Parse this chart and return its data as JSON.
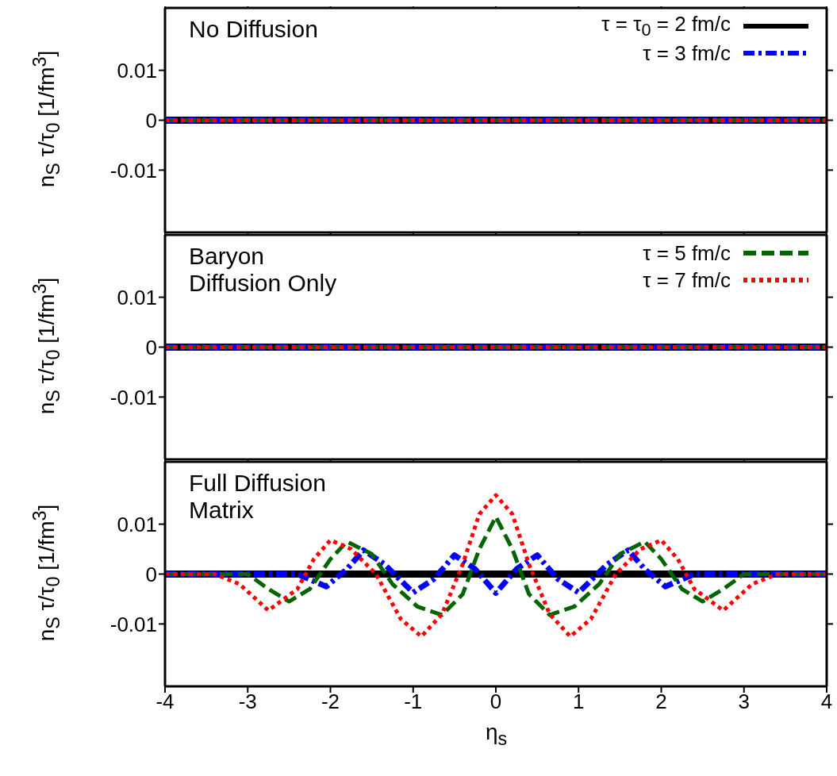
{
  "chart_data": [
    {
      "type": "line",
      "ylabel": "n$_{S}$ τ/τ$_{0}$ [1/fm$^{3}$]",
      "annotations": [
        "No Diffusion"
      ],
      "xlim": [
        -4,
        4
      ],
      "xticks": [
        -4,
        -3,
        -2,
        -1,
        0,
        1,
        2,
        3,
        4
      ],
      "ylim": [
        -0.0225,
        0.0225
      ],
      "yticks": [
        -0.01,
        0,
        0.01
      ],
      "tick_labels": "y",
      "legend": "top right",
      "series": [
        {
          "name": "τ = τ$_{0}$ = 2 fm/c",
          "color": "#000000",
          "line_style": "solid",
          "x": [
            -4,
            4
          ],
          "values": [
            0,
            0
          ]
        },
        {
          "name": "τ = 3 fm/c",
          "color": "#0000ff",
          "line_style": "dashdot",
          "x": [
            -4,
            4
          ],
          "values": [
            0,
            0
          ]
        },
        {
          "color": "#006400",
          "line_style": "dashed",
          "x": [
            -4,
            4
          ],
          "values": [
            0,
            0
          ]
        },
        {
          "color": "#ff0000",
          "line_style": "dotted",
          "x": [
            -4,
            4
          ],
          "values": [
            0,
            0
          ]
        }
      ]
    },
    {
      "type": "line",
      "ylabel": "n$_{S}$ τ/τ$_{0}$ [1/fm$^{3}$]",
      "annotations": [
        "Baryon\nDiffusion Only"
      ],
      "xlim": [
        -4,
        4
      ],
      "xticks": [
        -4,
        -3,
        -2,
        -1,
        0,
        1,
        2,
        3,
        4
      ],
      "ylim": [
        -0.0225,
        0.0225
      ],
      "yticks": [
        -0.01,
        0,
        0.01
      ],
      "tick_labels": "y",
      "legend": "top right",
      "series": [
        {
          "color": "#000000",
          "line_style": "solid",
          "x": [
            -4,
            4
          ],
          "values": [
            0,
            0
          ]
        },
        {
          "color": "#0000ff",
          "line_style": "dashdot",
          "x": [
            -4,
            4
          ],
          "values": [
            0,
            0
          ]
        },
        {
          "name": "τ = 5 fm/c",
          "color": "#006400",
          "line_style": "dashed",
          "x": [
            -4,
            4
          ],
          "values": [
            0,
            0
          ]
        },
        {
          "name": "τ = 7 fm/c",
          "color": "#ff0000",
          "line_style": "dotted",
          "x": [
            -4,
            4
          ],
          "values": [
            0,
            0
          ]
        }
      ]
    },
    {
      "type": "line",
      "xlabel": "η$_{s}$",
      "ylabel": "n$_{S}$ τ/τ$_{0}$ [1/fm$^{3}$]",
      "annotations": [
        "Full Diffusion\nMatrix"
      ],
      "xlim": [
        -4,
        4
      ],
      "xticks": [
        -4,
        -3,
        -2,
        -1,
        0,
        1,
        2,
        3,
        4
      ],
      "ylim": [
        -0.0225,
        0.0225
      ],
      "yticks": [
        -0.01,
        0,
        0.01
      ],
      "legend": false,
      "series": [
        {
          "color": "#000000",
          "line_style": "solid",
          "x": [
            -4,
            4
          ],
          "values": [
            0,
            0
          ]
        },
        {
          "color": "#0000ff",
          "line_style": "dashdot",
          "x": [
            -4,
            -2.4,
            -2.05,
            -1.8,
            -1.6,
            -1.35,
            -1.0,
            -0.75,
            -0.5,
            -0.25,
            0,
            0.25,
            0.5,
            0.75,
            1.0,
            1.35,
            1.6,
            1.8,
            2.05,
            2.4,
            4
          ],
          "values": [
            0,
            0,
            -0.0025,
            0.001,
            0.0048,
            0.002,
            -0.0037,
            -0.001,
            0.0038,
            0.001,
            -0.0038,
            0.001,
            0.0038,
            -0.001,
            -0.0037,
            0.002,
            0.0048,
            0.001,
            -0.0025,
            0,
            0
          ]
        },
        {
          "color": "#006400",
          "line_style": "dashed",
          "x": [
            -4,
            -3.0,
            -2.75,
            -2.5,
            -2.25,
            -2.0,
            -1.8,
            -1.5,
            -1.25,
            -0.95,
            -0.65,
            -0.4,
            -0.2,
            0,
            0.2,
            0.4,
            0.65,
            0.95,
            1.25,
            1.5,
            1.8,
            2.0,
            2.25,
            2.5,
            2.75,
            3.0,
            4
          ],
          "values": [
            0,
            0,
            -0.003,
            -0.0055,
            -0.003,
            0.003,
            0.0065,
            0.004,
            -0.002,
            -0.0065,
            -0.0082,
            -0.004,
            0.005,
            0.0115,
            0.005,
            -0.004,
            -0.0082,
            -0.0065,
            -0.002,
            0.004,
            0.0065,
            0.003,
            -0.003,
            -0.0055,
            -0.003,
            0,
            0
          ]
        },
        {
          "color": "#ff0000",
          "line_style": "dotted",
          "x": [
            -4,
            -3.4,
            -3.1,
            -2.75,
            -2.4,
            -2.2,
            -2.0,
            -1.75,
            -1.45,
            -1.15,
            -0.9,
            -0.65,
            -0.4,
            -0.2,
            0,
            0.2,
            0.4,
            0.65,
            0.9,
            1.15,
            1.45,
            1.75,
            2.0,
            2.2,
            2.4,
            2.75,
            3.1,
            3.4,
            4
          ],
          "values": [
            0,
            0,
            -0.002,
            -0.0073,
            -0.003,
            0.003,
            0.0068,
            0.005,
            0,
            -0.009,
            -0.0125,
            -0.008,
            0.002,
            0.012,
            0.0158,
            0.012,
            0.002,
            -0.008,
            -0.0125,
            -0.009,
            0,
            0.005,
            0.0068,
            0.003,
            -0.003,
            -0.0073,
            -0.002,
            0,
            0
          ]
        }
      ]
    }
  ]
}
